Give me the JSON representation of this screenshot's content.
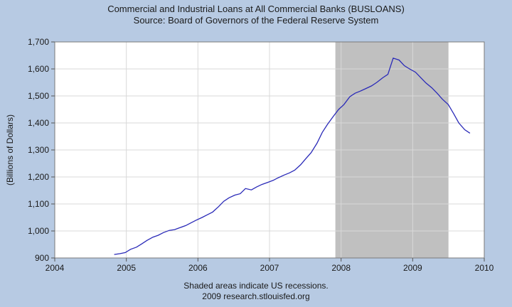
{
  "chart_data": {
    "type": "line",
    "title": "Commercial and Industrial Loans at All Commercial Banks (BUSLOANS)",
    "subtitle": "Source: Board of Governors of the Federal Reserve System",
    "ylabel": "(Billions of Dollars)",
    "xlabel": "",
    "xlim": [
      2004,
      2010
    ],
    "ylim": [
      900,
      1700
    ],
    "x_ticks": [
      2004,
      2005,
      2006,
      2007,
      2008,
      2009,
      2010
    ],
    "x_tick_labels": [
      "2004",
      "2005",
      "2006",
      "2007",
      "2008",
      "2009",
      "2010"
    ],
    "y_ticks": [
      900,
      1000,
      1100,
      1200,
      1300,
      1400,
      1500,
      1600,
      1700
    ],
    "y_tick_labels": [
      "900",
      "1,000",
      "1,100",
      "1,200",
      "1,300",
      "1,400",
      "1,500",
      "1,600",
      "1,700"
    ],
    "grid": true,
    "line_color": "#2a2ab8",
    "recession_color": "#c0c0c0",
    "recessions": [
      {
        "start": 2007.92,
        "end": 2009.5
      }
    ],
    "series": [
      {
        "values": [
          [
            2004.83,
            913
          ],
          [
            2004.92,
            916
          ],
          [
            2005.0,
            920
          ],
          [
            2005.08,
            932
          ],
          [
            2005.17,
            940
          ],
          [
            2005.25,
            952
          ],
          [
            2005.33,
            965
          ],
          [
            2005.42,
            977
          ],
          [
            2005.5,
            984
          ],
          [
            2005.58,
            994
          ],
          [
            2005.67,
            1002
          ],
          [
            2005.75,
            1005
          ],
          [
            2005.83,
            1012
          ],
          [
            2005.92,
            1020
          ],
          [
            2006.0,
            1030
          ],
          [
            2006.08,
            1040
          ],
          [
            2006.17,
            1050
          ],
          [
            2006.25,
            1060
          ],
          [
            2006.33,
            1070
          ],
          [
            2006.42,
            1090
          ],
          [
            2006.5,
            1110
          ],
          [
            2006.58,
            1123
          ],
          [
            2006.67,
            1133
          ],
          [
            2006.75,
            1138
          ],
          [
            2006.83,
            1157
          ],
          [
            2006.92,
            1152
          ],
          [
            2007.0,
            1163
          ],
          [
            2007.08,
            1172
          ],
          [
            2007.17,
            1180
          ],
          [
            2007.25,
            1187
          ],
          [
            2007.33,
            1197
          ],
          [
            2007.42,
            1207
          ],
          [
            2007.5,
            1215
          ],
          [
            2007.58,
            1225
          ],
          [
            2007.67,
            1245
          ],
          [
            2007.75,
            1268
          ],
          [
            2007.83,
            1290
          ],
          [
            2007.92,
            1325
          ],
          [
            2008.0,
            1365
          ],
          [
            2008.08,
            1395
          ],
          [
            2008.17,
            1425
          ],
          [
            2008.25,
            1450
          ],
          [
            2008.33,
            1468
          ],
          [
            2008.42,
            1497
          ],
          [
            2008.5,
            1510
          ],
          [
            2008.58,
            1518
          ],
          [
            2008.67,
            1528
          ],
          [
            2008.75,
            1537
          ],
          [
            2008.83,
            1550
          ],
          [
            2008.92,
            1567
          ],
          [
            2009.0,
            1580
          ],
          [
            2009.08,
            1640
          ],
          [
            2009.17,
            1633
          ],
          [
            2009.25,
            1612
          ],
          [
            2009.33,
            1600
          ],
          [
            2009.42,
            1588
          ],
          [
            2009.5,
            1568
          ],
          [
            2009.58,
            1548
          ],
          [
            2009.67,
            1530
          ],
          [
            2009.75,
            1510
          ],
          [
            2009.83,
            1488
          ],
          [
            2009.92,
            1468
          ],
          [
            2010.0,
            1435
          ],
          [
            2010.08,
            1400
          ],
          [
            2010.17,
            1375
          ],
          [
            2010.25,
            1362
          ]
        ]
      }
    ],
    "footer_line1": "Shaded areas indicate US recessions.",
    "footer_line2": "2009 research.stlouisfed.org"
  }
}
